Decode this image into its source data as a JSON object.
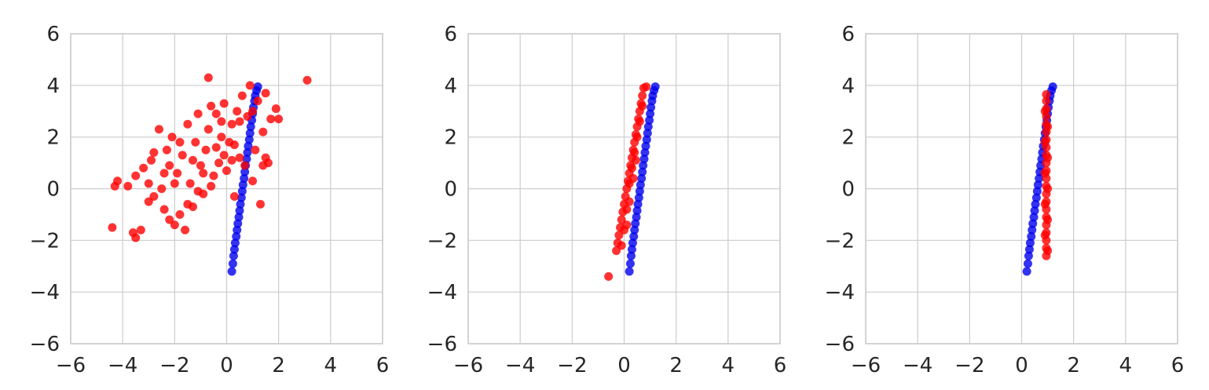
{
  "colors": {
    "red_series": "#ff0000",
    "blue_series": "#0000ee",
    "grid": "#cccccc",
    "text": "#262626",
    "background": "#ffffff"
  },
  "chart_data": [
    {
      "type": "scatter",
      "title": "",
      "xlabel": "",
      "ylabel": "",
      "xlim": [
        -6,
        6
      ],
      "ylim": [
        -6,
        6
      ],
      "xticks": [
        "−6",
        "−4",
        "−2",
        "0",
        "2",
        "4",
        "6"
      ],
      "yticks": [
        "−6",
        "−4",
        "−2",
        "0",
        "2",
        "4",
        "6"
      ],
      "grid": true,
      "series": [
        {
          "color": "#0000ee",
          "points": [
            [
              0.2,
              -3.2
            ],
            [
              0.24,
              -2.9
            ],
            [
              0.27,
              -2.6
            ],
            [
              0.3,
              -2.35
            ],
            [
              0.33,
              -2.1
            ],
            [
              0.37,
              -1.85
            ],
            [
              0.4,
              -1.6
            ],
            [
              0.43,
              -1.35
            ],
            [
              0.47,
              -1.1
            ],
            [
              0.5,
              -0.85
            ],
            [
              0.53,
              -0.6
            ],
            [
              0.57,
              -0.35
            ],
            [
              0.6,
              -0.1
            ],
            [
              0.63,
              0.15
            ],
            [
              0.67,
              0.4
            ],
            [
              0.7,
              0.65
            ],
            [
              0.73,
              0.9
            ],
            [
              0.77,
              1.15
            ],
            [
              0.8,
              1.4
            ],
            [
              0.83,
              1.65
            ],
            [
              0.87,
              1.9
            ],
            [
              0.9,
              2.15
            ],
            [
              0.93,
              2.4
            ],
            [
              0.97,
              2.65
            ],
            [
              1.0,
              2.9
            ],
            [
              1.03,
              3.15
            ],
            [
              1.07,
              3.4
            ],
            [
              1.1,
              3.6
            ],
            [
              1.15,
              3.8
            ],
            [
              1.2,
              3.95
            ]
          ]
        },
        {
          "color": "#ff0000",
          "points": [
            [
              -4.4,
              -1.5
            ],
            [
              -4.3,
              0.1
            ],
            [
              -4.2,
              0.3
            ],
            [
              -3.8,
              0.1
            ],
            [
              -3.6,
              -1.7
            ],
            [
              -3.5,
              -1.9
            ],
            [
              -3.3,
              -1.6
            ],
            [
              -3.5,
              0.5
            ],
            [
              -3.2,
              0.8
            ],
            [
              -3.0,
              -0.5
            ],
            [
              -2.8,
              -0.3
            ],
            [
              -2.9,
              1.1
            ],
            [
              -2.6,
              2.3
            ],
            [
              -2.5,
              0.0
            ],
            [
              -2.4,
              -0.8
            ],
            [
              -2.3,
              1.5
            ],
            [
              -2.2,
              -1.2
            ],
            [
              -2.0,
              -1.4
            ],
            [
              -2.1,
              2.0
            ],
            [
              -1.9,
              0.6
            ],
            [
              -1.8,
              -1.0
            ],
            [
              -1.7,
              1.3
            ],
            [
              -1.6,
              -1.6
            ],
            [
              -1.5,
              2.5
            ],
            [
              -1.4,
              0.2
            ],
            [
              -1.3,
              -0.7
            ],
            [
              -1.2,
              1.8
            ],
            [
              -1.1,
              2.9
            ],
            [
              -1.0,
              0.9
            ],
            [
              -0.9,
              -0.2
            ],
            [
              -0.8,
              1.5
            ],
            [
              -0.7,
              2.3
            ],
            [
              -0.6,
              3.2
            ],
            [
              -0.5,
              0.5
            ],
            [
              -0.4,
              2.9
            ],
            [
              -0.3,
              1.0
            ],
            [
              -0.2,
              2.0
            ],
            [
              -0.1,
              3.3
            ],
            [
              0.0,
              0.7
            ],
            [
              0.1,
              1.8
            ],
            [
              0.2,
              2.5
            ],
            [
              0.3,
              -0.3
            ],
            [
              0.4,
              3.0
            ],
            [
              0.5,
              1.2
            ],
            [
              0.6,
              3.6
            ],
            [
              0.7,
              0.9
            ],
            [
              0.8,
              2.8
            ],
            [
              0.9,
              4.0
            ],
            [
              1.0,
              0.3
            ],
            [
              1.1,
              1.5
            ],
            [
              1.2,
              3.4
            ],
            [
              1.3,
              -0.6
            ],
            [
              1.4,
              2.2
            ],
            [
              1.5,
              3.7
            ],
            [
              1.6,
              1.0
            ],
            [
              1.7,
              2.7
            ],
            [
              1.9,
              3.1
            ],
            [
              2.0,
              2.7
            ],
            [
              3.1,
              4.2
            ],
            [
              -0.7,
              4.3
            ],
            [
              1.4,
              0.9
            ],
            [
              -2.8,
              1.4
            ],
            [
              -2.0,
              0.2
            ],
            [
              -1.5,
              -0.6
            ],
            [
              -0.9,
              0.6
            ],
            [
              -0.4,
              1.6
            ],
            [
              0.2,
              1.1
            ],
            [
              -1.8,
              1.8
            ],
            [
              -2.4,
              0.6
            ],
            [
              -1.1,
              -0.1
            ],
            [
              0.5,
              2.6
            ],
            [
              -0.2,
              2.6
            ],
            [
              -3.0,
              0.2
            ],
            [
              1.0,
              3.0
            ],
            [
              -1.3,
              1.1
            ],
            [
              -0.6,
              0.1
            ],
            [
              -2.2,
              0.9
            ],
            [
              0.3,
              1.7
            ],
            [
              -0.1,
              1.3
            ],
            [
              1.5,
              1.2
            ]
          ]
        }
      ]
    },
    {
      "type": "scatter",
      "title": "",
      "xlabel": "",
      "ylabel": "",
      "xlim": [
        -6,
        6
      ],
      "ylim": [
        -6,
        6
      ],
      "xticks": [
        "−6",
        "−4",
        "−2",
        "0",
        "2",
        "4",
        "6"
      ],
      "yticks": [
        "−6",
        "−4",
        "−2",
        "0",
        "2",
        "4",
        "6"
      ],
      "grid": true,
      "series": [
        {
          "color": "#0000ee",
          "points": [
            [
              0.2,
              -3.2
            ],
            [
              0.24,
              -2.9
            ],
            [
              0.27,
              -2.6
            ],
            [
              0.3,
              -2.35
            ],
            [
              0.33,
              -2.1
            ],
            [
              0.37,
              -1.85
            ],
            [
              0.4,
              -1.6
            ],
            [
              0.43,
              -1.35
            ],
            [
              0.47,
              -1.1
            ],
            [
              0.5,
              -0.85
            ],
            [
              0.53,
              -0.6
            ],
            [
              0.57,
              -0.35
            ],
            [
              0.6,
              -0.1
            ],
            [
              0.63,
              0.15
            ],
            [
              0.67,
              0.4
            ],
            [
              0.7,
              0.65
            ],
            [
              0.73,
              0.9
            ],
            [
              0.77,
              1.15
            ],
            [
              0.8,
              1.4
            ],
            [
              0.83,
              1.65
            ],
            [
              0.87,
              1.9
            ],
            [
              0.9,
              2.15
            ],
            [
              0.93,
              2.4
            ],
            [
              0.97,
              2.65
            ],
            [
              1.0,
              2.9
            ],
            [
              1.03,
              3.15
            ],
            [
              1.07,
              3.4
            ],
            [
              1.1,
              3.6
            ],
            [
              1.15,
              3.8
            ],
            [
              1.2,
              3.95
            ]
          ]
        },
        {
          "color": "#ff0000",
          "points": [
            [
              -0.6,
              -3.4
            ],
            [
              -0.3,
              -2.4
            ],
            [
              -0.25,
              -2.1
            ],
            [
              -0.2,
              -1.8
            ],
            [
              -0.15,
              -1.5
            ],
            [
              -0.1,
              -1.2
            ],
            [
              -0.05,
              -0.9
            ],
            [
              0.0,
              -0.6
            ],
            [
              0.05,
              -0.3
            ],
            [
              0.1,
              0.0
            ],
            [
              0.15,
              0.3
            ],
            [
              0.2,
              0.6
            ],
            [
              0.25,
              0.9
            ],
            [
              0.3,
              1.2
            ],
            [
              0.35,
              1.5
            ],
            [
              0.4,
              1.8
            ],
            [
              0.45,
              2.1
            ],
            [
              0.5,
              2.4
            ],
            [
              0.55,
              2.7
            ],
            [
              0.6,
              3.0
            ],
            [
              0.65,
              3.3
            ],
            [
              0.7,
              3.6
            ],
            [
              0.75,
              3.9
            ],
            [
              0.85,
              3.95
            ],
            [
              -0.1,
              -2.2
            ],
            [
              0.0,
              -1.6
            ],
            [
              0.1,
              -0.8
            ],
            [
              0.2,
              0.2
            ],
            [
              0.3,
              0.8
            ],
            [
              0.4,
              1.4
            ],
            [
              0.5,
              2.0
            ],
            [
              0.6,
              2.6
            ],
            [
              0.7,
              3.2
            ],
            [
              0.1,
              -1.4
            ],
            [
              0.2,
              -0.5
            ],
            [
              0.35,
              0.4
            ],
            [
              0.45,
              1.1
            ]
          ]
        }
      ]
    },
    {
      "type": "scatter",
      "title": "",
      "xlabel": "",
      "ylabel": "",
      "xlim": [
        -6,
        6
      ],
      "ylim": [
        -6,
        6
      ],
      "xticks": [
        "−6",
        "−4",
        "−2",
        "0",
        "2",
        "4",
        "6"
      ],
      "yticks": [
        "−6",
        "−4",
        "−2",
        "0",
        "2",
        "4",
        "6"
      ],
      "grid": true,
      "series": [
        {
          "color": "#0000ee",
          "points": [
            [
              0.2,
              -3.2
            ],
            [
              0.24,
              -2.9
            ],
            [
              0.27,
              -2.6
            ],
            [
              0.3,
              -2.35
            ],
            [
              0.33,
              -2.1
            ],
            [
              0.37,
              -1.85
            ],
            [
              0.4,
              -1.6
            ],
            [
              0.43,
              -1.35
            ],
            [
              0.47,
              -1.1
            ],
            [
              0.5,
              -0.85
            ],
            [
              0.53,
              -0.6
            ],
            [
              0.57,
              -0.35
            ],
            [
              0.6,
              -0.1
            ],
            [
              0.63,
              0.15
            ],
            [
              0.67,
              0.4
            ],
            [
              0.7,
              0.65
            ],
            [
              0.73,
              0.9
            ],
            [
              0.77,
              1.15
            ],
            [
              0.8,
              1.4
            ],
            [
              0.83,
              1.65
            ],
            [
              0.87,
              1.9
            ],
            [
              0.9,
              2.15
            ],
            [
              0.93,
              2.4
            ],
            [
              0.97,
              2.65
            ],
            [
              1.0,
              2.9
            ],
            [
              1.03,
              3.15
            ],
            [
              1.07,
              3.4
            ],
            [
              1.1,
              3.6
            ],
            [
              1.15,
              3.8
            ],
            [
              1.2,
              3.95
            ]
          ]
        },
        {
          "color": "#ff0000",
          "points": [
            [
              0.95,
              -2.6
            ],
            [
              0.95,
              -2.3
            ],
            [
              0.95,
              -2.0
            ],
            [
              0.95,
              -1.7
            ],
            [
              0.95,
              -1.4
            ],
            [
              0.95,
              -1.1
            ],
            [
              0.95,
              -0.8
            ],
            [
              0.95,
              -0.5
            ],
            [
              0.95,
              -0.2
            ],
            [
              0.95,
              0.1
            ],
            [
              0.95,
              0.4
            ],
            [
              0.95,
              0.7
            ],
            [
              0.95,
              1.0
            ],
            [
              0.95,
              1.3
            ],
            [
              0.95,
              1.6
            ],
            [
              0.95,
              1.9
            ],
            [
              0.95,
              2.2
            ],
            [
              0.95,
              2.5
            ],
            [
              0.95,
              2.8
            ],
            [
              0.95,
              3.1
            ],
            [
              0.95,
              3.4
            ],
            [
              0.95,
              3.65
            ],
            [
              1.0,
              -2.4
            ],
            [
              1.0,
              -1.2
            ],
            [
              1.0,
              0.0
            ],
            [
              1.0,
              1.2
            ],
            [
              1.0,
              2.4
            ],
            [
              0.9,
              -1.8
            ],
            [
              0.9,
              -0.6
            ],
            [
              0.9,
              0.6
            ],
            [
              0.9,
              1.8
            ],
            [
              0.9,
              3.0
            ]
          ]
        }
      ]
    }
  ]
}
